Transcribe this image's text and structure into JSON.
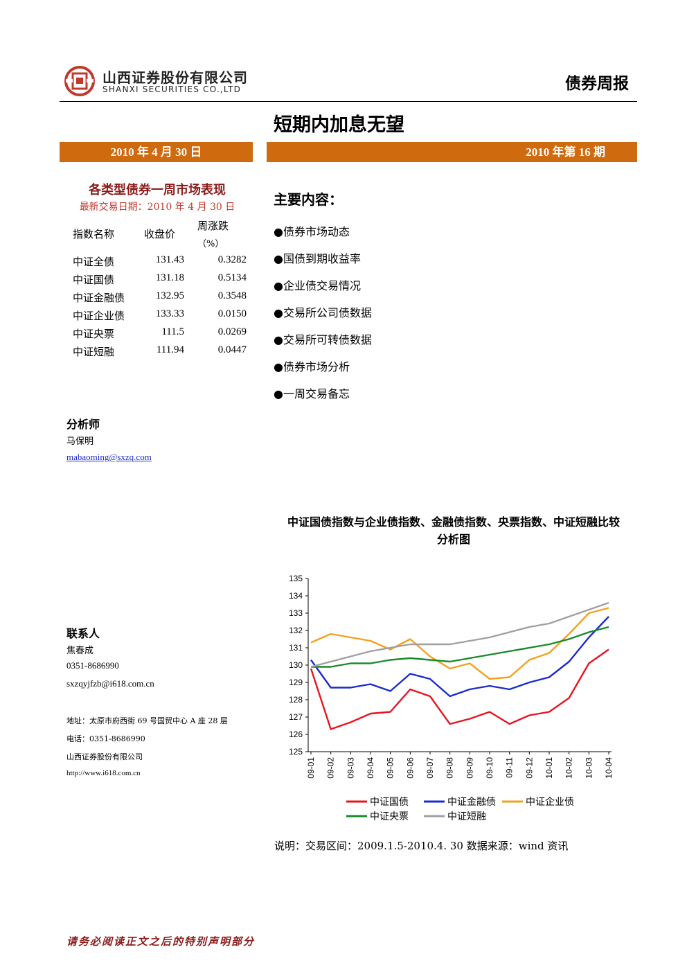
{
  "header": {
    "company_cn": "山西证券股份有限公司",
    "company_en": "SHANXI SECURITIES CO.,LTD",
    "report_type": "债券周报",
    "logo_icon": "shanxi-securities-logo-icon",
    "brand_color": "#c0392b"
  },
  "title": "短期内加息无望",
  "date_bar": "2010 年 4 月 30 日",
  "issue_bar": "2010 年第 16 期",
  "accent_color": "#cf6a0e",
  "performance": {
    "title": "各类型债券一周市场表现",
    "latest_date": "最新交易日期：2010 年 4 月 30 日",
    "headers": [
      "指数名称",
      "收盘价",
      "周涨跌",
      "（%）"
    ],
    "rows": [
      {
        "name": "中证全债",
        "close": "131.43",
        "change": "0.3282"
      },
      {
        "name": "中证国债",
        "close": "131.18",
        "change": "0.5134"
      },
      {
        "name": "中证金融债",
        "close": "132.95",
        "change": "0.3548"
      },
      {
        "name": "中证企业债",
        "close": "133.33",
        "change": "0.0150"
      },
      {
        "name": "中证央票",
        "close": "111.5",
        "change": "0.0269"
      },
      {
        "name": "中证短融",
        "close": "111.94",
        "change": "0.0447"
      }
    ]
  },
  "main_content": {
    "title": "主要内容：",
    "items": [
      "●债券市场动态",
      "●国债到期收益率",
      "●企业债交易情况",
      "●交易所公司债数据",
      "●交易所可转债数据",
      "●债券市场分析",
      "●一周交易备忘"
    ]
  },
  "analyst": {
    "heading": "分析师",
    "name": "马保明",
    "email": "mabaoming@sxzq.com"
  },
  "contact": {
    "heading": "联系人",
    "name": "焦春成",
    "phone": "0351-8686990",
    "email": "sxzqyjfzb@i618.com.cn"
  },
  "footer_info": {
    "address": "地址：太原市府西街 69 号国贸中心 A 座 28 层",
    "phone": "电话：0351-8686990",
    "company": "山西证券股份有限公司",
    "website": "http://www.i618.com.cn"
  },
  "chart_title_line1": "中证国债指数与企业债指数、金融债指数、央票指数、中证短融比较",
  "chart_title_line2": "分析图",
  "chart_data": {
    "type": "line",
    "title": "中证国债指数与企业债指数、金融债指数、央票指数、中证短融比较分析图",
    "x": [
      "09-01",
      "09-02",
      "09-03",
      "09-04",
      "09-05",
      "09-06",
      "09-07",
      "09-08",
      "09-09",
      "09-10",
      "09-11",
      "09-12",
      "10-01",
      "10-02",
      "10-03",
      "10-04"
    ],
    "ylim": [
      125,
      135
    ],
    "yticks": [
      125,
      126,
      127,
      128,
      129,
      130,
      131,
      132,
      133,
      134,
      135
    ],
    "grid": false,
    "legend_position": "bottom",
    "series": [
      {
        "name": "中证国债",
        "color": "#e8141e",
        "values": [
          129.8,
          126.3,
          126.7,
          127.2,
          127.3,
          128.6,
          128.2,
          126.6,
          126.9,
          127.3,
          126.6,
          127.1,
          127.3,
          128.1,
          130.1,
          130.9
        ]
      },
      {
        "name": "中证金融债",
        "color": "#1a2bcc",
        "values": [
          130.3,
          128.7,
          128.7,
          128.9,
          128.5,
          129.5,
          129.2,
          128.2,
          128.6,
          128.8,
          128.6,
          129.0,
          129.3,
          130.2,
          131.6,
          132.8
        ]
      },
      {
        "name": "中证企业债",
        "color": "#f2a21e",
        "values": [
          131.3,
          131.8,
          131.6,
          131.4,
          130.9,
          131.5,
          130.5,
          129.8,
          130.1,
          129.2,
          129.3,
          130.3,
          130.7,
          131.8,
          133.0,
          133.3
        ]
      },
      {
        "name": "中证央票",
        "color": "#1a8a2b",
        "values": [
          129.9,
          129.9,
          130.1,
          130.1,
          130.3,
          130.4,
          130.3,
          130.2,
          130.4,
          130.6,
          130.8,
          131.0,
          131.2,
          131.5,
          131.9,
          132.2
        ]
      },
      {
        "name": "中证短融",
        "color": "#a0a0a0",
        "values": [
          129.9,
          130.2,
          130.5,
          130.8,
          131.0,
          131.2,
          131.2,
          131.2,
          131.4,
          131.6,
          131.9,
          132.2,
          132.4,
          132.8,
          133.2,
          133.6
        ]
      }
    ]
  },
  "chart_note": "说明：交易区间：2009.1.5-2010.4. 30 数据来源：wind 资讯",
  "disclaimer": "请务必阅读正文之后的特别声明部分"
}
